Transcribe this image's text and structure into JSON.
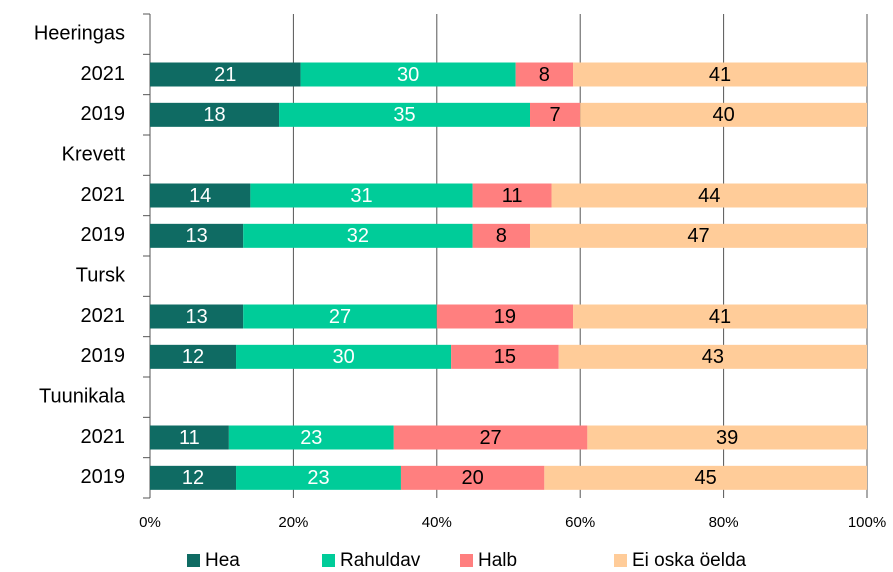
{
  "chart_data": {
    "type": "stacked-barh",
    "categories": [
      "Heeringas",
      "2021",
      "2019",
      "Krevett",
      "2021",
      "2019",
      "Tursk",
      "2021",
      "2019",
      "Tuunikala",
      "2021",
      "2019"
    ],
    "series": [
      {
        "name": "Hea",
        "color": "#0f6b63",
        "values": [
          null,
          21,
          18,
          null,
          14,
          13,
          null,
          13,
          12,
          null,
          11,
          12
        ]
      },
      {
        "name": "Rahuldav",
        "color": "#00cc99",
        "values": [
          null,
          30,
          35,
          null,
          31,
          32,
          null,
          27,
          30,
          null,
          23,
          23
        ]
      },
      {
        "name": "Halb",
        "color": "#ff7f7f",
        "values": [
          null,
          8,
          7,
          null,
          11,
          8,
          null,
          19,
          15,
          null,
          27,
          20
        ]
      },
      {
        "name": "Ei oska öelda",
        "color": "#ffcc99",
        "values": [
          null,
          41,
          40,
          null,
          44,
          47,
          null,
          41,
          43,
          null,
          39,
          45
        ]
      }
    ],
    "xlim": [
      0,
      100
    ],
    "xticks": [
      {
        "value": 0,
        "label": "0%"
      },
      {
        "value": 20,
        "label": "20%"
      },
      {
        "value": 40,
        "label": "40%"
      },
      {
        "value": 60,
        "label": "60%"
      },
      {
        "value": 80,
        "label": "80%"
      },
      {
        "value": 100,
        "label": "100%"
      }
    ],
    "grid": true,
    "legend": "bottom"
  }
}
